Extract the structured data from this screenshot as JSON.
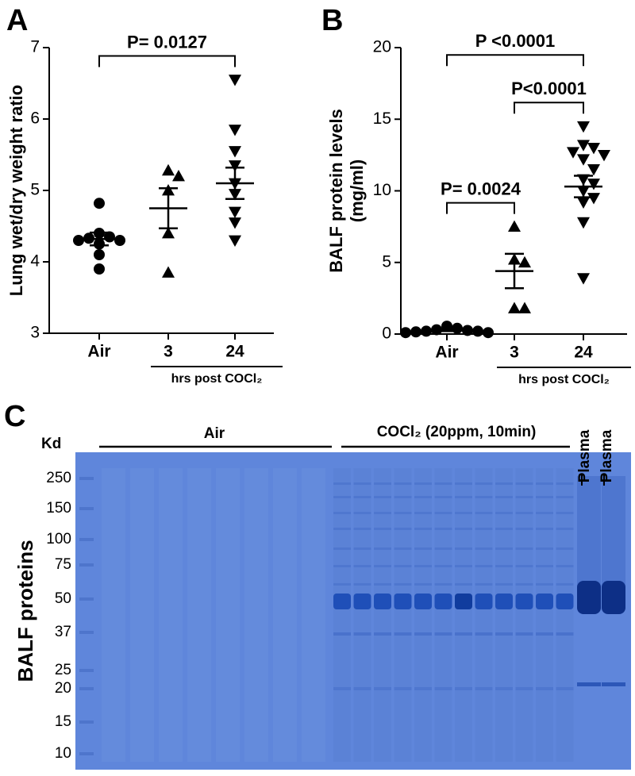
{
  "chart_data": [
    {
      "type": "dotplot",
      "panel_label": "A",
      "ylabel": [
        "Lung wet/dry weight ratio"
      ],
      "categories": [
        "Air",
        "3",
        "24"
      ],
      "group_label": "hrs post COCl₂",
      "group_span": [
        1,
        2
      ],
      "markers": [
        "circle",
        "triangle-up",
        "triangle-down"
      ],
      "color": "#000000",
      "points": [
        [
          4.82,
          4.4,
          4.35,
          4.33,
          4.3,
          4.3,
          4.25,
          4.1,
          3.9
        ],
        [
          5.28,
          5.2,
          5.0,
          4.4,
          3.85
        ],
        [
          6.55,
          5.85,
          5.55,
          5.35,
          5.1,
          4.95,
          4.7,
          4.55,
          4.3
        ]
      ],
      "means": [
        4.32,
        4.75,
        5.1
      ],
      "sems": [
        0.09,
        0.28,
        0.22
      ],
      "ylim": [
        3,
        7
      ],
      "yticks": [
        3,
        4,
        5,
        6,
        7
      ],
      "comparisons": [
        {
          "from": 0,
          "to": 2,
          "label": "P= 0.0127"
        }
      ]
    },
    {
      "type": "dotplot",
      "panel_label": "B",
      "ylabel": [
        "BALF protein levels",
        "(mg/ml)"
      ],
      "categories": [
        "Air",
        "3",
        "24"
      ],
      "group_label": "hrs post COCl₂",
      "group_span": [
        1,
        2
      ],
      "markers": [
        "circle",
        "triangle-up",
        "triangle-down"
      ],
      "color": "#000000",
      "points": [
        [
          0.55,
          0.4,
          0.3,
          0.25,
          0.2,
          0.2,
          0.15,
          0.1,
          0.1
        ],
        [
          7.5,
          5.2,
          5.0,
          1.8,
          1.8
        ],
        [
          14.5,
          13.2,
          13.0,
          12.7,
          12.5,
          12.2,
          11.5,
          10.8,
          10.5,
          10.0,
          9.5,
          9.2,
          7.8,
          3.9
        ]
      ],
      "means": [
        0.25,
        4.4,
        10.3
      ],
      "sems": [
        0.05,
        1.2,
        0.75
      ],
      "ylim": [
        0,
        20
      ],
      "yticks": [
        0,
        5,
        10,
        15,
        20
      ],
      "comparisons": [
        {
          "from": 0,
          "to": 1,
          "label": "P= 0.0024"
        },
        {
          "from": 1,
          "to": 2,
          "label": "P<0.0001"
        },
        {
          "from": 0,
          "to": 2,
          "label": "P <0.0001"
        }
      ]
    }
  ],
  "gel": {
    "panel_label": "C",
    "unit_label": "Kd",
    "side_label": "BALF proteins",
    "marker_sizes": [
      "250",
      "150",
      "100",
      "75",
      "50",
      "37",
      "25",
      "20",
      "15",
      "10"
    ],
    "lane_groups": [
      "Air",
      "COCl₂ (20ppm, 10min)"
    ],
    "plasma_labels": [
      "Plasma",
      "Plasma"
    ]
  }
}
